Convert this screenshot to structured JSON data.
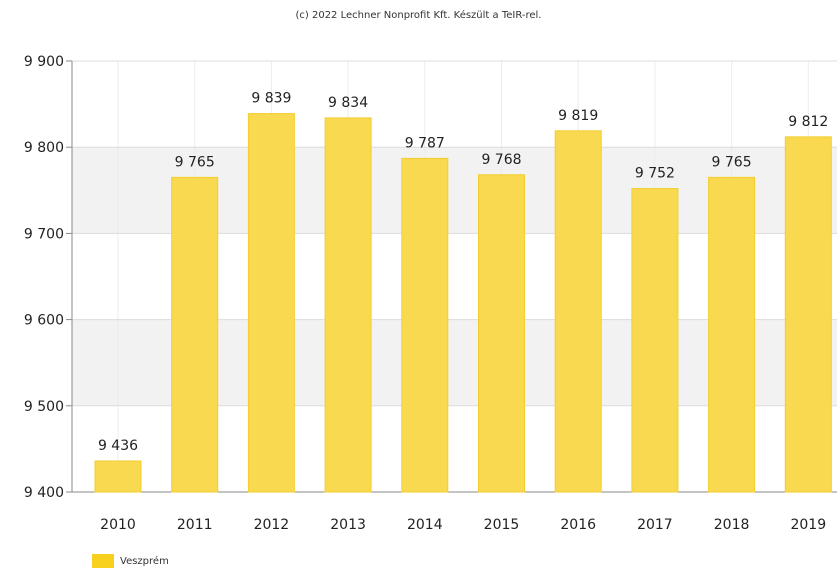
{
  "caption": "(c) 2022 Lechner Nonprofit Kft. Készült a TeIR-rel.",
  "chart_data": {
    "type": "bar",
    "title": "",
    "xlabel": "",
    "ylabel": "",
    "categories": [
      "2010",
      "2011",
      "2012",
      "2013",
      "2014",
      "2015",
      "2016",
      "2017",
      "2018",
      "2019"
    ],
    "series": [
      {
        "name": "Veszprém",
        "values": [
          9436,
          9765,
          9839,
          9834,
          9787,
          9768,
          9819,
          9752,
          9765,
          9812
        ]
      }
    ],
    "value_labels": [
      "9 436",
      "9 765",
      "9 839",
      "9 834",
      "9 787",
      "9 768",
      "9 819",
      "9 752",
      "9 765",
      "9 812"
    ],
    "ylim": [
      9400,
      9900
    ],
    "yticks": [
      9400,
      9500,
      9600,
      9700,
      9800,
      9900
    ],
    "ytick_labels": [
      "9 400",
      "9 500",
      "9 600",
      "9 700",
      "9 800",
      "9 900"
    ],
    "grid": true,
    "legend_position": "bottom-left",
    "colors": {
      "bar": "#f9d94f",
      "bar_edge": "#f3cd2e",
      "band": "#f2f2f2",
      "legend": "#f7d11e"
    }
  },
  "legend": {
    "label": "Veszprém"
  }
}
